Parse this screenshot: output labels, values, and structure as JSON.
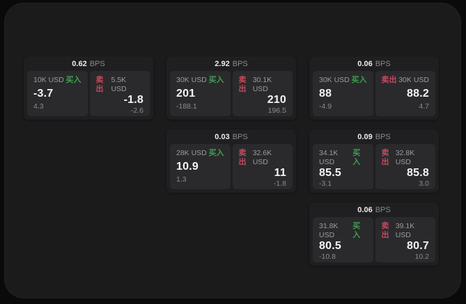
{
  "labels": {
    "bps_suffix": "BPS",
    "buy": "买入",
    "sell": "卖出"
  },
  "colors": {
    "buy": "#3f9e52",
    "sell": "#c34a5e",
    "background": "#0a0a0b",
    "panel": "#1b1b1c",
    "card": "#1f1f21",
    "tile": "#2a2a2c"
  },
  "cards": [
    {
      "bps": "0.62",
      "grid": {
        "col": 1,
        "row": 1
      },
      "buy": {
        "amount": "10K USD",
        "value": "-3.7",
        "sub": "4.3"
      },
      "sell": {
        "amount": "5.5K USD",
        "value": "-1.8",
        "sub": "-2.6"
      }
    },
    {
      "bps": "2.92",
      "grid": {
        "col": 2,
        "row": 1
      },
      "buy": {
        "amount": "30K USD",
        "value": "201",
        "sub": "-188.1"
      },
      "sell": {
        "amount": "30.1K USD",
        "value": "210",
        "sub": "196.5"
      }
    },
    {
      "bps": "0.06",
      "grid": {
        "col": 3,
        "row": 1
      },
      "buy": {
        "amount": "30K USD",
        "value": "88",
        "sub": "-4.9"
      },
      "sell": {
        "amount": "30K USD",
        "value": "88.2",
        "sub": "4.7"
      }
    },
    {
      "bps": "0.03",
      "grid": {
        "col": 2,
        "row": 2
      },
      "buy": {
        "amount": "28K USD",
        "value": "10.9",
        "sub": "1.3"
      },
      "sell": {
        "amount": "32.6K USD",
        "value": "11",
        "sub": "-1.8"
      }
    },
    {
      "bps": "0.09",
      "grid": {
        "col": 3,
        "row": 2
      },
      "buy": {
        "amount": "34.1K USD",
        "value": "85.5",
        "sub": "-3.1"
      },
      "sell": {
        "amount": "32.8K USD",
        "value": "85.8",
        "sub": "3.0"
      }
    },
    {
      "bps": "0.06",
      "grid": {
        "col": 3,
        "row": 3
      },
      "buy": {
        "amount": "31.8K USD",
        "value": "80.5",
        "sub": "-10.8"
      },
      "sell": {
        "amount": "39.1K USD",
        "value": "80.7",
        "sub": "10.2"
      }
    }
  ]
}
